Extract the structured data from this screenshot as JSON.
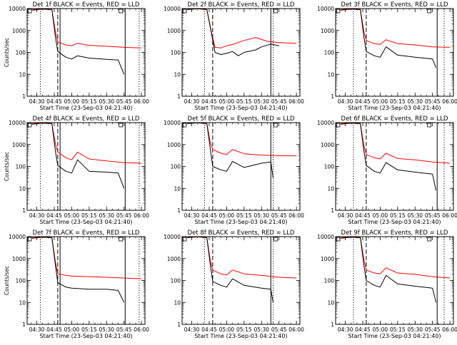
{
  "chart_data": [
    {
      "type": "line",
      "title": "Det 1f BLACK = Events, RED = LLD",
      "xlabel": "Start Time (23-Sep-03 04:21:40)",
      "ylabel": "Counts/sec",
      "y_scale": "log",
      "ylim": [
        1,
        10000
      ],
      "x_tick_labels": [
        "04:30",
        "04:45",
        "05:00",
        "05:15",
        "05:30",
        "05:45",
        "06:00"
      ],
      "y_tick_labels": [
        "1",
        "10",
        "100",
        "1000",
        "10000"
      ],
      "series": [
        {
          "color": "#000000",
          "x": [
            "04:26",
            "04:35",
            "04:43",
            "04:46",
            "04:48",
            "04:55",
            "05:00",
            "05:05",
            "05:15",
            "05:30",
            "05:40",
            "05:45"
          ],
          "values": [
            8500,
            9500,
            9000,
            500,
            110,
            60,
            50,
            70,
            55,
            48,
            45,
            10
          ]
        },
        {
          "color": "#ff0000",
          "x": [
            "04:26",
            "04:35",
            "04:43",
            "04:46",
            "04:48",
            "04:55",
            "05:00",
            "05:05",
            "05:15",
            "05:30",
            "05:45",
            "06:00"
          ],
          "values": [
            9000,
            9500,
            9000,
            900,
            300,
            220,
            200,
            260,
            210,
            190,
            170,
            160
          ]
        }
      ],
      "vlines": [
        {
          "x": "04:33",
          "style": "dotted"
        },
        {
          "x": "04:48",
          "style": "dashed"
        },
        {
          "x": "04:50",
          "style": "solid"
        },
        {
          "x": "05:46",
          "style": "solid"
        },
        {
          "x": "05:58",
          "style": "dotted"
        }
      ]
    },
    {
      "type": "line",
      "title": "Det 2f BLACK = Events, RED = LLD",
      "xlabel": "Start Time (23-Sep-03 04:21:40)",
      "ylabel": "",
      "y_scale": "log",
      "ylim": [
        1,
        10000
      ],
      "x_tick_labels": [
        "04:30",
        "04:45",
        "05:00",
        "05:15",
        "05:30",
        "05:45",
        "06:00"
      ],
      "y_tick_labels": [
        "1",
        "10",
        "100",
        "1000",
        "10000"
      ],
      "series": [
        {
          "color": "#000000",
          "x": [
            "04:26",
            "04:35",
            "04:43",
            "04:47",
            "04:50",
            "04:55",
            "05:00",
            "05:05",
            "05:10",
            "05:15",
            "05:25",
            "05:30",
            "05:38",
            "05:45"
          ],
          "values": [
            9000,
            9800,
            9000,
            700,
            100,
            80,
            90,
            110,
            70,
            100,
            130,
            180,
            240,
            200
          ]
        },
        {
          "color": "#ff0000",
          "x": [
            "04:26",
            "04:35",
            "04:43",
            "04:47",
            "04:50",
            "04:55",
            "05:00",
            "05:05",
            "05:15",
            "05:25",
            "05:35",
            "05:45",
            "06:00"
          ],
          "values": [
            9000,
            9800,
            9000,
            800,
            170,
            160,
            200,
            230,
            350,
            480,
            320,
            280,
            260
          ]
        }
      ],
      "vlines": [
        {
          "x": "04:41",
          "style": "dotted"
        },
        {
          "x": "04:48",
          "style": "dashed"
        },
        {
          "x": "05:38",
          "style": "solid"
        },
        {
          "x": "05:40",
          "style": "dotted"
        }
      ]
    },
    {
      "type": "line",
      "title": "Det 3f BLACK = Events, RED = LLD",
      "xlabel": "Start Time (23-Sep-03 04:21:40)",
      "ylabel": "",
      "y_scale": "log",
      "ylim": [
        1,
        10000
      ],
      "x_tick_labels": [
        "04:30",
        "04:45",
        "05:00",
        "05:15",
        "05:30",
        "05:45",
        "06:00"
      ],
      "y_tick_labels": [
        "1",
        "10",
        "100",
        "1000",
        "10000"
      ],
      "series": [
        {
          "color": "#000000",
          "x": [
            "04:26",
            "04:35",
            "04:43",
            "04:46",
            "04:48",
            "04:55",
            "05:00",
            "05:05",
            "05:15",
            "05:30",
            "05:45",
            "05:48"
          ],
          "values": [
            8500,
            9500,
            9000,
            500,
            110,
            70,
            60,
            180,
            75,
            60,
            50,
            20
          ]
        },
        {
          "color": "#ff0000",
          "x": [
            "04:26",
            "04:35",
            "04:43",
            "04:46",
            "04:48",
            "04:55",
            "05:00",
            "05:05",
            "05:15",
            "05:30",
            "05:45",
            "06:00"
          ],
          "values": [
            9000,
            9500,
            9000,
            900,
            350,
            250,
            230,
            380,
            250,
            220,
            180,
            170
          ]
        }
      ],
      "vlines": [
        {
          "x": "04:37",
          "style": "dotted"
        },
        {
          "x": "04:48",
          "style": "dashed"
        },
        {
          "x": "05:49",
          "style": "solid"
        },
        {
          "x": "05:55",
          "style": "dotted"
        }
      ]
    },
    {
      "type": "line",
      "title": "Det 4f BLACK = Events, RED = LLD",
      "xlabel": "Start Time (23-Sep-03 04:21:40)",
      "ylabel": "Counts/sec",
      "y_scale": "log",
      "ylim": [
        1,
        10000
      ],
      "x_tick_labels": [
        "04:30",
        "04:45",
        "05:00",
        "05:15",
        "05:30",
        "05:45",
        "06:00"
      ],
      "y_tick_labels": [
        "1",
        "10",
        "100",
        "1000",
        "10000"
      ],
      "series": [
        {
          "color": "#000000",
          "x": [
            "04:26",
            "04:35",
            "04:43",
            "04:46",
            "04:48",
            "04:55",
            "05:00",
            "05:05",
            "05:15",
            "05:30",
            "05:40",
            "05:45"
          ],
          "values": [
            8500,
            9500,
            9000,
            500,
            110,
            60,
            50,
            200,
            60,
            55,
            50,
            10
          ]
        },
        {
          "color": "#ff0000",
          "x": [
            "04:26",
            "04:35",
            "04:43",
            "04:46",
            "04:48",
            "04:55",
            "05:00",
            "05:05",
            "05:15",
            "05:30",
            "05:45",
            "06:00"
          ],
          "values": [
            9000,
            9500,
            9000,
            1100,
            450,
            250,
            200,
            450,
            220,
            180,
            150,
            140
          ]
        }
      ],
      "vlines": [
        {
          "x": "04:33",
          "style": "dotted"
        },
        {
          "x": "04:48",
          "style": "dashed"
        },
        {
          "x": "04:50",
          "style": "solid"
        },
        {
          "x": "05:46",
          "style": "solid"
        },
        {
          "x": "05:58",
          "style": "dotted"
        }
      ]
    },
    {
      "type": "line",
      "title": "Det 5f BLACK = Events, RED = LLD",
      "xlabel": "Start Time (23-Sep-03 04:21:40)",
      "ylabel": "",
      "y_scale": "log",
      "ylim": [
        1,
        10000
      ],
      "x_tick_labels": [
        "04:30",
        "04:45",
        "05:00",
        "05:15",
        "05:30",
        "05:45",
        "06:00"
      ],
      "y_tick_labels": [
        "1",
        "10",
        "100",
        "1000",
        "10000"
      ],
      "series": [
        {
          "color": "#000000",
          "x": [
            "04:26",
            "04:35",
            "04:43",
            "04:46",
            "04:48",
            "04:55",
            "05:00",
            "05:05",
            "05:15",
            "05:30",
            "05:38",
            "05:40"
          ],
          "values": [
            9000,
            9800,
            9000,
            600,
            100,
            70,
            60,
            170,
            90,
            140,
            160,
            30
          ]
        },
        {
          "color": "#ff0000",
          "x": [
            "04:26",
            "04:35",
            "04:43",
            "04:46",
            "04:48",
            "04:55",
            "05:00",
            "05:05",
            "05:15",
            "05:30",
            "05:45",
            "06:00"
          ],
          "values": [
            9000,
            9800,
            9000,
            1200,
            600,
            400,
            350,
            600,
            380,
            330,
            310,
            300
          ]
        }
      ],
      "vlines": [
        {
          "x": "04:41",
          "style": "dotted"
        },
        {
          "x": "04:48",
          "style": "dashed"
        },
        {
          "x": "05:38",
          "style": "solid"
        },
        {
          "x": "05:40",
          "style": "dotted"
        }
      ]
    },
    {
      "type": "line",
      "title": "Det 6f BLACK = Events, RED = LLD",
      "xlabel": "Start Time (23-Sep-03 04:21:40)",
      "ylabel": "",
      "y_scale": "log",
      "ylim": [
        1,
        10000
      ],
      "x_tick_labels": [
        "04:30",
        "04:45",
        "05:00",
        "05:15",
        "05:30",
        "05:45",
        "06:00"
      ],
      "y_tick_labels": [
        "1",
        "10",
        "100",
        "1000",
        "10000"
      ],
      "series": [
        {
          "color": "#000000",
          "x": [
            "04:26",
            "04:35",
            "04:43",
            "04:46",
            "04:48",
            "04:55",
            "05:00",
            "05:05",
            "05:15",
            "05:30",
            "05:45",
            "05:48"
          ],
          "values": [
            8500,
            9500,
            9000,
            500,
            110,
            60,
            50,
            150,
            70,
            55,
            45,
            8
          ]
        },
        {
          "color": "#ff0000",
          "x": [
            "04:26",
            "04:35",
            "04:43",
            "04:46",
            "04:48",
            "04:55",
            "05:00",
            "05:05",
            "05:15",
            "05:30",
            "05:45",
            "06:00"
          ],
          "values": [
            9000,
            9500,
            9000,
            900,
            350,
            250,
            220,
            400,
            230,
            200,
            160,
            140
          ]
        }
      ],
      "vlines": [
        {
          "x": "04:37",
          "style": "dotted"
        },
        {
          "x": "04:48",
          "style": "dashed"
        },
        {
          "x": "05:49",
          "style": "solid"
        },
        {
          "x": "05:55",
          "style": "dotted"
        }
      ]
    },
    {
      "type": "line",
      "title": "Det 7f BLACK = Events, RED = LLD",
      "xlabel": "Start Time (23-Sep-03 04:21:40)",
      "ylabel": "Counts/sec",
      "y_scale": "log",
      "ylim": [
        1,
        10000
      ],
      "x_tick_labels": [
        "04:30",
        "04:45",
        "05:00",
        "05:15",
        "05:30",
        "05:45",
        "06:00"
      ],
      "y_tick_labels": [
        "1",
        "10",
        "100",
        "1000",
        "10000"
      ],
      "series": [
        {
          "color": "#000000",
          "x": [
            "04:26",
            "04:35",
            "04:43",
            "04:46",
            "04:48",
            "04:55",
            "05:00",
            "05:15",
            "05:30",
            "05:40",
            "05:45"
          ],
          "values": [
            8500,
            9500,
            9000,
            500,
            80,
            50,
            45,
            40,
            40,
            35,
            10
          ]
        },
        {
          "color": "#ff0000",
          "x": [
            "04:26",
            "04:35",
            "04:43",
            "04:46",
            "04:48",
            "04:55",
            "05:00",
            "05:15",
            "05:30",
            "05:45",
            "06:00"
          ],
          "values": [
            9000,
            9500,
            9000,
            700,
            200,
            170,
            160,
            150,
            140,
            130,
            120
          ]
        }
      ],
      "vlines": [
        {
          "x": "04:33",
          "style": "dotted"
        },
        {
          "x": "04:48",
          "style": "dashed"
        },
        {
          "x": "04:50",
          "style": "solid"
        },
        {
          "x": "05:46",
          "style": "solid"
        },
        {
          "x": "05:58",
          "style": "dotted"
        }
      ]
    },
    {
      "type": "line",
      "title": "Det 8f BLACK = Events, RED = LLD",
      "xlabel": "Start Time (23-Sep-03 04:21:40)",
      "ylabel": "",
      "y_scale": "log",
      "ylim": [
        1,
        10000
      ],
      "x_tick_labels": [
        "04:30",
        "04:45",
        "05:00",
        "05:15",
        "05:30",
        "05:45",
        "06:00"
      ],
      "y_tick_labels": [
        "1",
        "10",
        "100",
        "1000",
        "10000"
      ],
      "series": [
        {
          "color": "#000000",
          "x": [
            "04:26",
            "04:35",
            "04:43",
            "04:46",
            "04:48",
            "04:55",
            "05:00",
            "05:05",
            "05:15",
            "05:30",
            "05:38",
            "05:40"
          ],
          "values": [
            9000,
            9800,
            9000,
            500,
            90,
            60,
            50,
            120,
            60,
            45,
            40,
            10
          ]
        },
        {
          "color": "#ff0000",
          "x": [
            "04:26",
            "04:35",
            "04:43",
            "04:46",
            "04:48",
            "04:55",
            "05:00",
            "05:05",
            "05:15",
            "05:30",
            "05:45",
            "06:00"
          ],
          "values": [
            9000,
            9800,
            9000,
            800,
            300,
            200,
            180,
            300,
            200,
            170,
            140,
            130
          ]
        }
      ],
      "vlines": [
        {
          "x": "04:41",
          "style": "dotted"
        },
        {
          "x": "04:48",
          "style": "dashed"
        },
        {
          "x": "05:38",
          "style": "solid"
        },
        {
          "x": "05:40",
          "style": "dotted"
        }
      ]
    },
    {
      "type": "line",
      "title": "Det 9f BLACK = Events, RED = LLD",
      "xlabel": "Start Time (23-Sep-03 04:21:40)",
      "ylabel": "",
      "y_scale": "log",
      "ylim": [
        1,
        10000
      ],
      "x_tick_labels": [
        "04:30",
        "04:45",
        "05:00",
        "05:15",
        "05:30",
        "05:45",
        "06:00"
      ],
      "y_tick_labels": [
        "1",
        "10",
        "100",
        "1000",
        "10000"
      ],
      "series": [
        {
          "color": "#000000",
          "x": [
            "04:26",
            "04:35",
            "04:43",
            "04:46",
            "04:48",
            "04:55",
            "05:00",
            "05:05",
            "05:15",
            "05:30",
            "05:45",
            "05:48"
          ],
          "values": [
            8500,
            9500,
            9000,
            500,
            100,
            60,
            50,
            170,
            70,
            55,
            45,
            10
          ]
        },
        {
          "color": "#ff0000",
          "x": [
            "04:26",
            "04:35",
            "04:43",
            "04:46",
            "04:48",
            "04:55",
            "05:00",
            "05:05",
            "05:15",
            "05:30",
            "05:45",
            "06:00"
          ],
          "values": [
            9000,
            9500,
            9000,
            900,
            300,
            220,
            200,
            380,
            220,
            190,
            150,
            130
          ]
        }
      ],
      "vlines": [
        {
          "x": "04:37",
          "style": "dotted"
        },
        {
          "x": "04:48",
          "style": "dashed"
        },
        {
          "x": "05:49",
          "style": "solid"
        },
        {
          "x": "05:55",
          "style": "dotted"
        }
      ]
    }
  ]
}
